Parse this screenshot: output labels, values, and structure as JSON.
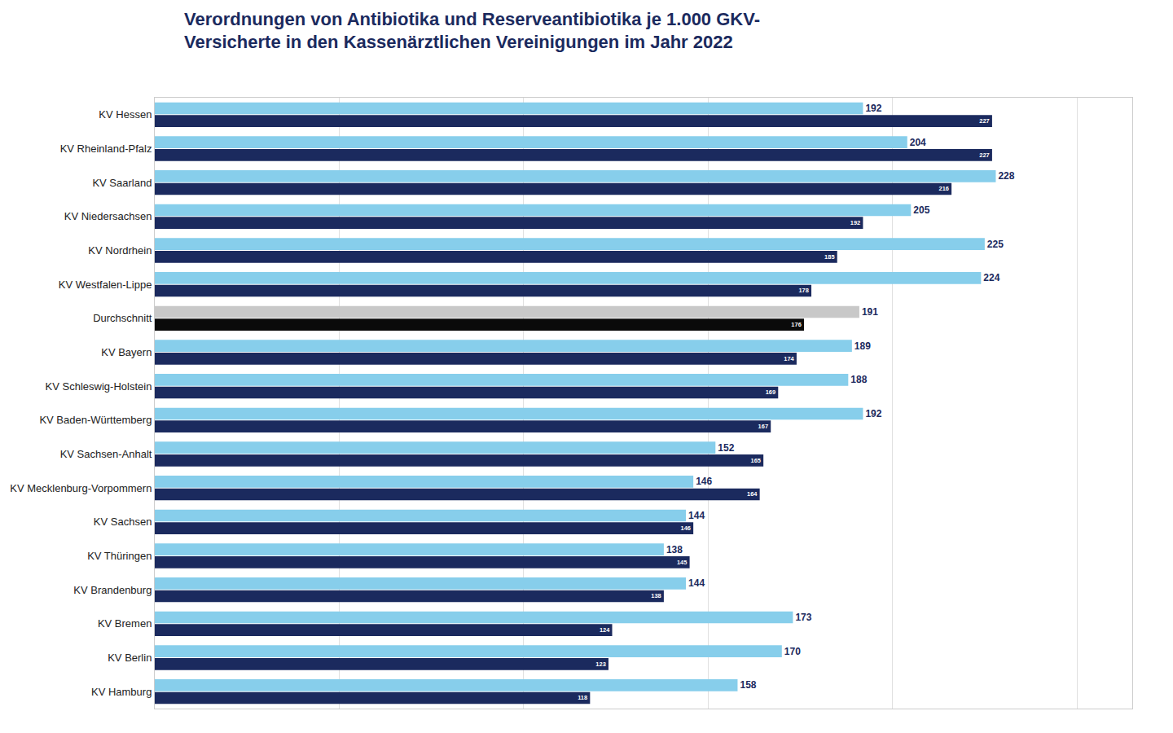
{
  "chart_data": {
    "type": "bar",
    "orientation": "horizontal",
    "title": "Verordnungen von Antibiotika und Reserveantibiotika je 1.000 GKV-\nVersicherte in den Kassenärztlichen Vereinigungen im Jahr 2022",
    "categories": [
      "KV Hessen",
      "KV Rheinland-Pfalz",
      "KV Saarland",
      "KV Niedersachsen",
      "KV Nordrhein",
      "KV Westfalen-Lippe",
      "Durchschnitt",
      "KV Bayern",
      "KV Schleswig-Holstein",
      "KV Baden-Württemberg",
      "KV Sachsen-Anhalt",
      "KV Mecklenburg-Vorpommern",
      "KV Sachsen",
      "KV Thüringen",
      "KV Brandenburg",
      "KV Bremen",
      "KV Berlin",
      "KV Hamburg"
    ],
    "series": [
      {
        "colors": [
          "#87CEEB",
          "#87CEEB",
          "#87CEEB",
          "#87CEEB",
          "#87CEEB",
          "#87CEEB",
          "#C8C8C8",
          "#87CEEB",
          "#87CEEB",
          "#87CEEB",
          "#87CEEB",
          "#87CEEB",
          "#87CEEB",
          "#87CEEB",
          "#87CEEB",
          "#87CEEB",
          "#87CEEB",
          "#87CEEB"
        ],
        "values": [
          192,
          204,
          228,
          205,
          225,
          224,
          191,
          189,
          188,
          192,
          152,
          146,
          144,
          138,
          144,
          173,
          170,
          158
        ]
      },
      {
        "colors": [
          "#1B2A5E",
          "#1B2A5E",
          "#1B2A5E",
          "#1B2A5E",
          "#1B2A5E",
          "#1B2A5E",
          "#0A0A0A",
          "#1B2A5E",
          "#1B2A5E",
          "#1B2A5E",
          "#1B2A5E",
          "#1B2A5E",
          "#1B2A5E",
          "#1B2A5E",
          "#1B2A5E",
          "#1B2A5E",
          "#1B2A5E",
          "#1B2A5E"
        ],
        "values": [
          227,
          227,
          216,
          192,
          185,
          178,
          176,
          174,
          169,
          167,
          165,
          164,
          146,
          145,
          138,
          124,
          123,
          118
        ]
      }
    ],
    "xlim": [
      0,
      265
    ],
    "xticks": [
      0,
      50,
      100,
      150,
      200,
      250
    ],
    "grid": true,
    "data_labels": true,
    "tick_labels": "y"
  }
}
